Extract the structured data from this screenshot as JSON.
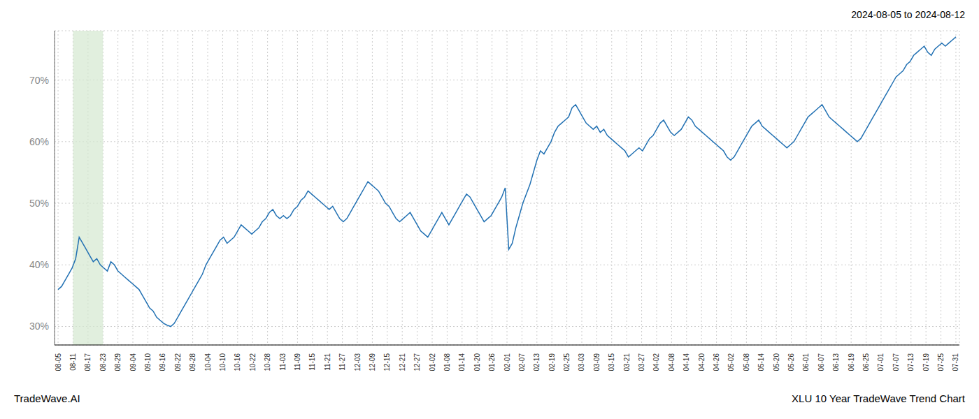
{
  "chart_data": {
    "type": "line",
    "title": "2024-08-05 to 2024-08-12",
    "annotations": [
      "TradeWave.AI",
      "XLU 10 Year TradeWave Trend Chart"
    ],
    "color": "#2271b3",
    "grid": true,
    "xlim": [
      -1,
      256
    ],
    "xticks": [
      {
        "value": 0,
        "label": "08-05"
      },
      {
        "value": 4.25,
        "label": "08-11"
      },
      {
        "value": 8.5,
        "label": "08-17"
      },
      {
        "value": 12.75,
        "label": "08-23"
      },
      {
        "value": 17,
        "label": "08-29"
      },
      {
        "value": 21.25,
        "label": "09-04"
      },
      {
        "value": 25.5,
        "label": "09-10"
      },
      {
        "value": 29.75,
        "label": "09-16"
      },
      {
        "value": 34,
        "label": "09-22"
      },
      {
        "value": 38.25,
        "label": "09-28"
      },
      {
        "value": 42.5,
        "label": "10-04"
      },
      {
        "value": 46.75,
        "label": "10-10"
      },
      {
        "value": 51,
        "label": "10-16"
      },
      {
        "value": 55.25,
        "label": "10-22"
      },
      {
        "value": 59.5,
        "label": "10-28"
      },
      {
        "value": 63.75,
        "label": "11-03"
      },
      {
        "value": 68,
        "label": "11-09"
      },
      {
        "value": 72.25,
        "label": "11-15"
      },
      {
        "value": 76.5,
        "label": "11-21"
      },
      {
        "value": 80.75,
        "label": "11-27"
      },
      {
        "value": 85,
        "label": "12-03"
      },
      {
        "value": 89.25,
        "label": "12-09"
      },
      {
        "value": 93.5,
        "label": "12-15"
      },
      {
        "value": 97.75,
        "label": "12-21"
      },
      {
        "value": 102,
        "label": "12-27"
      },
      {
        "value": 106.25,
        "label": "01-02"
      },
      {
        "value": 110.5,
        "label": "01-08"
      },
      {
        "value": 114.75,
        "label": "01-14"
      },
      {
        "value": 119,
        "label": "01-20"
      },
      {
        "value": 123.25,
        "label": "01-26"
      },
      {
        "value": 127.5,
        "label": "02-01"
      },
      {
        "value": 131.75,
        "label": "02-07"
      },
      {
        "value": 136,
        "label": "02-13"
      },
      {
        "value": 140.25,
        "label": "02-19"
      },
      {
        "value": 144.5,
        "label": "02-25"
      },
      {
        "value": 148.75,
        "label": "03-03"
      },
      {
        "value": 153,
        "label": "03-09"
      },
      {
        "value": 157.25,
        "label": "03-15"
      },
      {
        "value": 161.5,
        "label": "03-21"
      },
      {
        "value": 165.75,
        "label": "03-27"
      },
      {
        "value": 170,
        "label": "04-02"
      },
      {
        "value": 174.25,
        "label": "04-08"
      },
      {
        "value": 178.5,
        "label": "04-14"
      },
      {
        "value": 182.75,
        "label": "04-20"
      },
      {
        "value": 187,
        "label": "04-26"
      },
      {
        "value": 191.25,
        "label": "05-02"
      },
      {
        "value": 195.5,
        "label": "05-08"
      },
      {
        "value": 199.75,
        "label": "05-14"
      },
      {
        "value": 204,
        "label": "05-20"
      },
      {
        "value": 208.25,
        "label": "05-26"
      },
      {
        "value": 212.5,
        "label": "06-01"
      },
      {
        "value": 216.75,
        "label": "06-07"
      },
      {
        "value": 221,
        "label": "06-13"
      },
      {
        "value": 225.25,
        "label": "06-19"
      },
      {
        "value": 229.5,
        "label": "06-25"
      },
      {
        "value": 233.75,
        "label": "07-01"
      },
      {
        "value": 238,
        "label": "07-07"
      },
      {
        "value": 242.25,
        "label": "07-13"
      },
      {
        "value": 246.5,
        "label": "07-19"
      },
      {
        "value": 250.75,
        "label": "07-25"
      },
      {
        "value": 255,
        "label": "07-31"
      }
    ],
    "ylim": [
      27,
      78
    ],
    "yticks": [
      {
        "value": 30,
        "label": "30%"
      },
      {
        "value": 40,
        "label": "40%"
      },
      {
        "value": 50,
        "label": "50%"
      },
      {
        "value": 60,
        "label": "60%"
      },
      {
        "value": 70,
        "label": "70%"
      }
    ],
    "highlight": {
      "from": "08-11",
      "to": "08-23",
      "color": "#d4e8d0"
    },
    "x": [
      0,
      1,
      2,
      3,
      4,
      5,
      6,
      7,
      8,
      9,
      10,
      11,
      12,
      13,
      14,
      15,
      16,
      17,
      18,
      19,
      20,
      21,
      22,
      23,
      24,
      25,
      26,
      27,
      28,
      29,
      30,
      31,
      32,
      33,
      34,
      35,
      36,
      37,
      38,
      39,
      40,
      41,
      42,
      43,
      44,
      45,
      46,
      47,
      48,
      49,
      50,
      51,
      52,
      53,
      54,
      55,
      56,
      57,
      58,
      59,
      60,
      61,
      62,
      63,
      64,
      65,
      66,
      67,
      68,
      69,
      70,
      71,
      72,
      73,
      74,
      75,
      76,
      77,
      78,
      79,
      80,
      81,
      82,
      83,
      84,
      85,
      86,
      87,
      88,
      89,
      90,
      91,
      92,
      93,
      94,
      95,
      96,
      97,
      98,
      99,
      100,
      101,
      102,
      103,
      104,
      105,
      106,
      107,
      108,
      109,
      110,
      111,
      112,
      113,
      114,
      115,
      116,
      117,
      118,
      119,
      120,
      121,
      122,
      123,
      124,
      125,
      126,
      127,
      128,
      129,
      130,
      131,
      132,
      133,
      134,
      135,
      136,
      137,
      138,
      139,
      140,
      141,
      142,
      143,
      144,
      145,
      146,
      147,
      148,
      149,
      150,
      151,
      152,
      153,
      154,
      155,
      156,
      157,
      158,
      159,
      160,
      161,
      162,
      163,
      164,
      165,
      166,
      167,
      168,
      169,
      170,
      171,
      172,
      173,
      174,
      175,
      176,
      177,
      178,
      179,
      180,
      181,
      182,
      183,
      184,
      185,
      186,
      187,
      188,
      189,
      190,
      191,
      192,
      193,
      194,
      195,
      196,
      197,
      198,
      199,
      200,
      201,
      202,
      203,
      204,
      205,
      206,
      207,
      208,
      209,
      210,
      211,
      212,
      213,
      214,
      215,
      216,
      217,
      218,
      219,
      220,
      221,
      222,
      223,
      224,
      225,
      226,
      227,
      228,
      229,
      230,
      231,
      232,
      233,
      234,
      235,
      236,
      237,
      238,
      239,
      240,
      241,
      242,
      243,
      244,
      245,
      246,
      247,
      248,
      249,
      250,
      251,
      252,
      253,
      254,
      255
    ],
    "values": [
      36.0,
      36.5,
      37.5,
      38.5,
      39.5,
      41.0,
      44.5,
      43.5,
      42.5,
      41.5,
      40.5,
      41.0,
      40.0,
      39.5,
      39.0,
      40.5,
      40.0,
      39.0,
      38.5,
      38.0,
      37.5,
      37.0,
      36.5,
      36.0,
      35.0,
      34.0,
      33.0,
      32.5,
      31.5,
      31.0,
      30.5,
      30.2,
      30.0,
      30.5,
      31.5,
      32.5,
      33.5,
      34.5,
      35.5,
      36.5,
      37.5,
      38.5,
      40.0,
      41.0,
      42.0,
      43.0,
      44.0,
      44.5,
      43.5,
      44.0,
      44.5,
      45.5,
      46.5,
      46.0,
      45.5,
      45.0,
      45.5,
      46.0,
      47.0,
      47.5,
      48.5,
      49.0,
      48.0,
      47.5,
      48.0,
      47.5,
      48.0,
      49.0,
      49.5,
      50.5,
      51.0,
      52.0,
      51.5,
      51.0,
      50.5,
      50.0,
      49.5,
      49.0,
      49.5,
      48.5,
      47.5,
      47.0,
      47.5,
      48.5,
      49.5,
      50.5,
      51.5,
      52.5,
      53.5,
      53.0,
      52.5,
      52.0,
      51.0,
      50.0,
      49.5,
      48.5,
      47.5,
      47.0,
      47.5,
      48.0,
      48.5,
      47.5,
      46.5,
      45.5,
      45.0,
      44.5,
      45.5,
      46.5,
      47.5,
      48.5,
      47.5,
      46.5,
      47.5,
      48.5,
      49.5,
      50.5,
      51.5,
      51.0,
      50.0,
      49.0,
      48.0,
      47.0,
      47.5,
      48.0,
      49.0,
      50.0,
      51.0,
      52.5,
      42.5,
      43.5,
      46.0,
      48.0,
      50.0,
      51.5,
      53.0,
      55.0,
      57.0,
      58.5,
      58.0,
      59.0,
      60.0,
      61.5,
      62.5,
      63.0,
      63.5,
      64.0,
      65.5,
      66.0,
      65.0,
      64.0,
      63.0,
      62.5,
      62.0,
      62.5,
      61.5,
      62.0,
      61.0,
      60.5,
      60.0,
      59.5,
      59.0,
      58.5,
      57.5,
      58.0,
      58.5,
      59.0,
      58.5,
      59.5,
      60.5,
      61.0,
      62.0,
      63.0,
      63.5,
      62.5,
      61.5,
      61.0,
      61.5,
      62.0,
      63.0,
      64.0,
      63.5,
      62.5,
      62.0,
      61.5,
      61.0,
      60.5,
      60.0,
      59.5,
      59.0,
      58.5,
      57.5,
      57.0,
      57.5,
      58.5,
      59.5,
      60.5,
      61.5,
      62.5,
      63.0,
      63.5,
      62.5,
      62.0,
      61.5,
      61.0,
      60.5,
      60.0,
      59.5,
      59.0,
      59.5,
      60.0,
      61.0,
      62.0,
      63.0,
      64.0,
      64.5,
      65.0,
      65.5,
      66.0,
      65.0,
      64.0,
      63.5,
      63.0,
      62.5,
      62.0,
      61.5,
      61.0,
      60.5,
      60.0,
      60.5,
      61.5,
      62.5,
      63.5,
      64.5,
      65.5,
      66.5,
      67.5,
      68.5,
      69.5,
      70.5,
      71.0,
      71.5,
      72.5,
      73.0,
      74.0,
      74.5,
      75.0,
      75.5,
      74.5,
      74.0,
      75.0,
      75.5,
      76.0,
      75.5,
      76.0,
      76.5,
      77.0
    ]
  }
}
